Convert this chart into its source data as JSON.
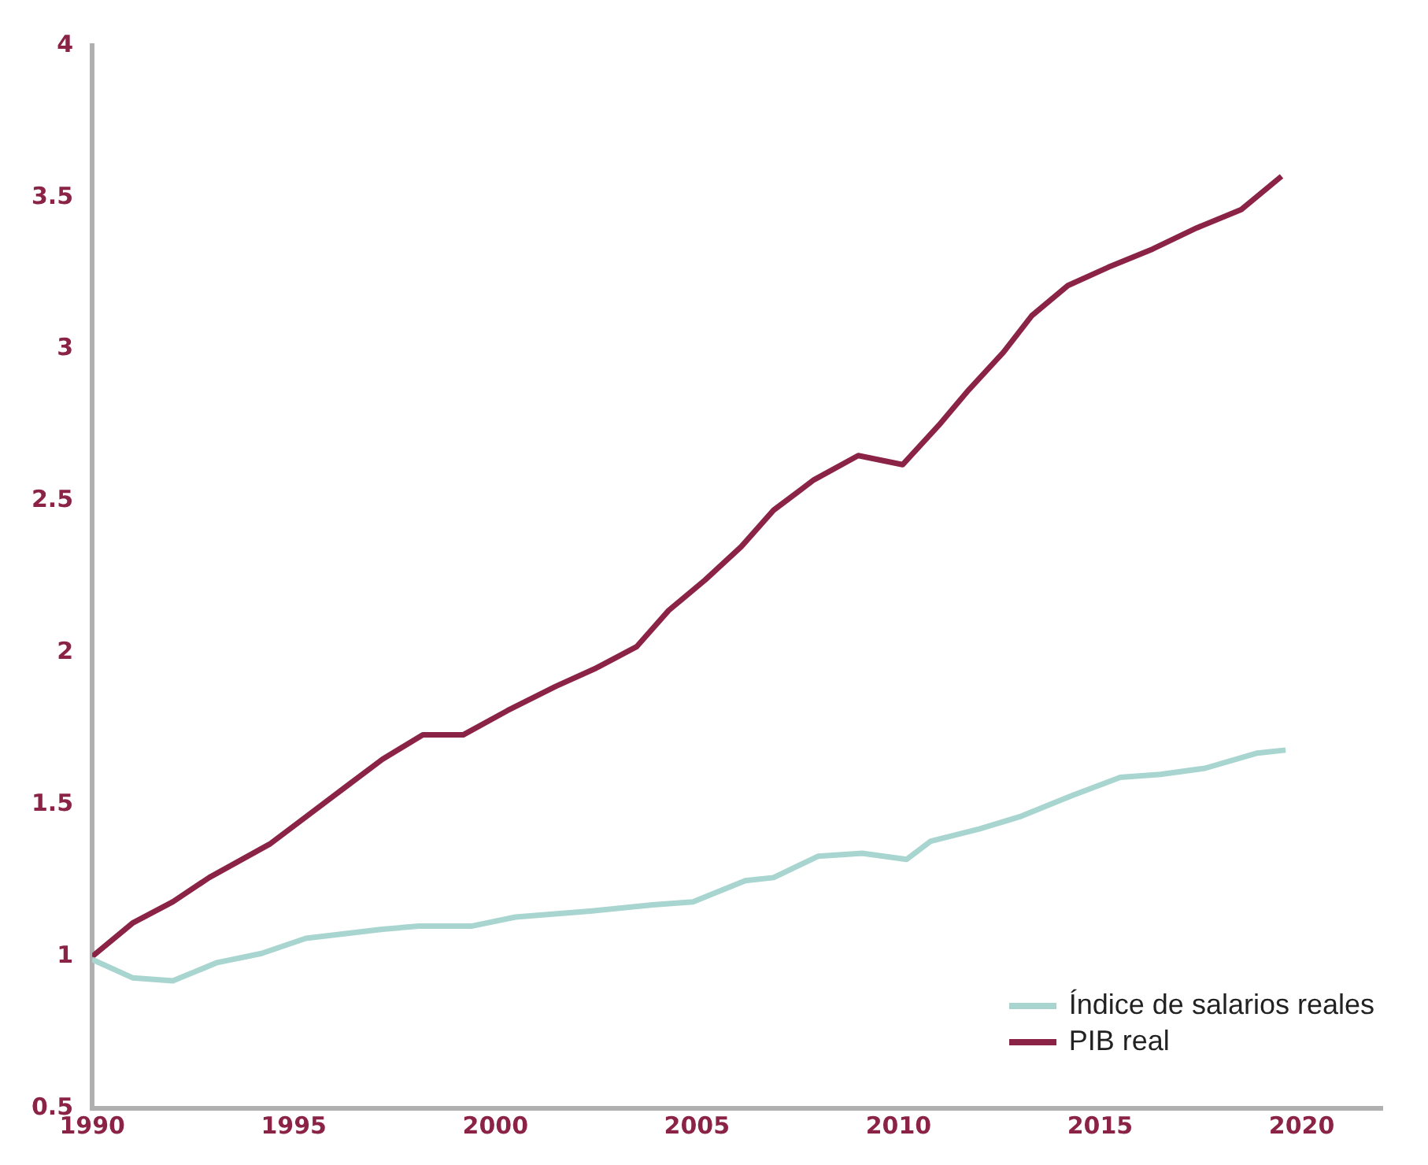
{
  "chart_data": {
    "type": "line",
    "x": [
      1990,
      1991,
      1992,
      1992.9,
      1994.4,
      1995.3,
      1996.3,
      1997.2,
      1998.2,
      1999.2,
      2000.3,
      2001.5,
      2002.5,
      2003.5,
      2004.3,
      2005.2,
      2006.1,
      2006.9,
      2007.9,
      2009,
      2010.1,
      2011,
      2011.7,
      2012.6,
      2013.3,
      2014.2,
      2015.2,
      2016.3,
      2017.4,
      2018.5,
      2019.5
    ],
    "series": [
      {
        "name": "Índice de salarios reales",
        "color": "#a8d5cf",
        "x": [
          1990,
          1991,
          1992,
          1993.1,
          1994.2,
          1995.3,
          1997.2,
          1998.1,
          1999.4,
          2000.5,
          2002.4,
          2003.9,
          2004.9,
          2006.2,
          2006.9,
          2008,
          2009.1,
          2010.2,
          2010.8,
          2012,
          2013,
          2014.3,
          2015.5,
          2016.5,
          2017.6,
          2018.9,
          2019.6
        ],
        "values": [
          0.99,
          0.93,
          0.92,
          0.98,
          1.01,
          1.06,
          1.09,
          1.1,
          1.1,
          1.13,
          1.15,
          1.17,
          1.18,
          1.25,
          1.26,
          1.33,
          1.34,
          1.32,
          1.38,
          1.42,
          1.46,
          1.53,
          1.59,
          1.6,
          1.62,
          1.67,
          1.68
        ]
      },
      {
        "name": "PIB real",
        "color": "#8b2346",
        "values": [
          1.0,
          1.11,
          1.18,
          1.26,
          1.37,
          1.46,
          1.56,
          1.65,
          1.73,
          1.73,
          1.81,
          1.89,
          1.95,
          2.02,
          2.14,
          2.24,
          2.35,
          2.47,
          2.57,
          2.65,
          2.62,
          2.75,
          2.86,
          2.99,
          3.11,
          3.21,
          3.27,
          3.33,
          3.4,
          3.46,
          3.57
        ]
      }
    ],
    "xlim": [
      1990,
      2022
    ],
    "xticks": [
      1990,
      1995,
      2000,
      2005,
      2010,
      2015,
      2020
    ],
    "ylim": [
      0.5,
      4
    ],
    "yticks": [
      0.5,
      1,
      1.5,
      2,
      2.5,
      3,
      3.5,
      4
    ],
    "grid": false,
    "legend": "bottom right",
    "marker": "none",
    "line_style": "solid"
  }
}
